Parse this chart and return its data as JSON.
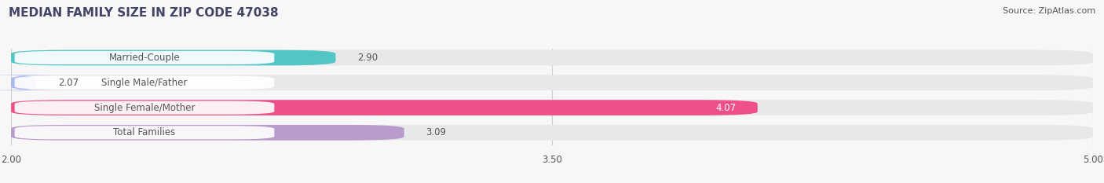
{
  "title": "MEDIAN FAMILY SIZE IN ZIP CODE 47038",
  "source": "Source: ZipAtlas.com",
  "categories": [
    "Married-Couple",
    "Single Male/Father",
    "Single Female/Mother",
    "Total Families"
  ],
  "values": [
    2.9,
    2.07,
    4.07,
    3.09
  ],
  "bar_colors": [
    "#52c5c5",
    "#aab8f0",
    "#f0508a",
    "#b89acc"
  ],
  "xlim_min": 2.0,
  "xlim_max": 5.0,
  "xticks": [
    2.0,
    3.5,
    5.0
  ],
  "bar_height": 0.62,
  "label_fontsize": 8.5,
  "value_fontsize": 8.5,
  "title_fontsize": 11,
  "source_fontsize": 8,
  "background_color": "#f7f7f7",
  "bar_bg_color": "#e8e8e8",
  "label_bg_color": "#ffffff",
  "grid_color": "#cccccc",
  "text_color": "#555555",
  "title_color": "#444466"
}
